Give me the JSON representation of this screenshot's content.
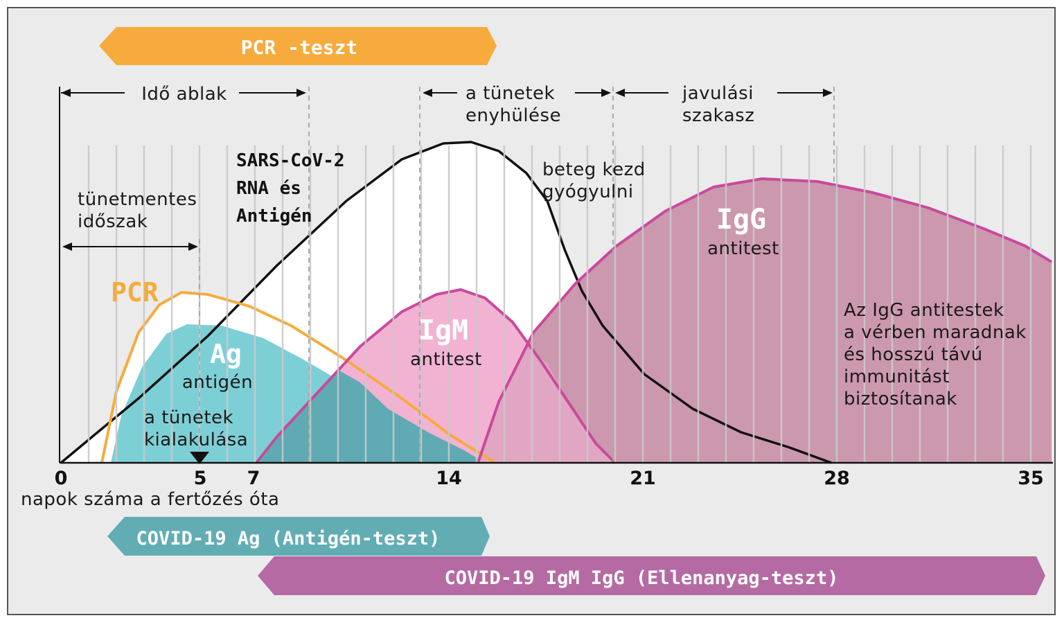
{
  "colors": {
    "background": "#ebebeb",
    "frame": "#555555",
    "pcr": "#f6ab3c",
    "ag": "#7dcfd6",
    "ag_dark": "#5fb0b8",
    "igm_fill": "#f2b2d2",
    "igm_line": "#c9499d",
    "igg_fill": "#cc98ad",
    "igg_line": "#c9499d",
    "rna_line": "#111111",
    "banner_pcr": "#f6ab3c",
    "banner_ag": "#62adb4",
    "banner_ab": "#b56aa3",
    "banner_text": "#ffffff",
    "vertical_lines": "#c9c9c9"
  },
  "banners": {
    "pcr": "PCR -teszt",
    "ag": "COVID-19 Ag (Antigén-teszt)",
    "ab": "COVID-19  IgM  IgG (Ellenanyag-teszt)"
  },
  "phases": {
    "window": "Idő ablak",
    "symptoms_ease_1": "a tünetek",
    "symptoms_ease_2": "enyhülése",
    "recovery_1": "javulási",
    "recovery_2": "szakasz"
  },
  "labels": {
    "asymptomatic_1": "tünetmentes",
    "asymptomatic_2": "időszak",
    "rna_1": "SARS-CoV-2",
    "rna_2": "RNA és",
    "rna_3": "Antigén",
    "patient_1": "beteg kezd",
    "patient_2": "gyógyulni",
    "pcr": "PCR",
    "ag_title": "Ag",
    "ag_sub": "antigén",
    "onset_1": "a tünetek",
    "onset_2": "kialakulása",
    "igm_title": "IgM",
    "igm_sub": "antitest",
    "igg_title": "IgG",
    "igg_sub": "antitest",
    "igg_note_1": "Az IgG antitestek",
    "igg_note_2": "a vérben maradnak",
    "igg_note_3": "és hosszú távú",
    "igg_note_4": "immunitást",
    "igg_note_5": "biztosítanak"
  },
  "axis": {
    "ticks": [
      "0",
      "5",
      "7",
      "14",
      "21",
      "28",
      "35"
    ],
    "xlabel": "napok száma a fertőzés óta"
  }
}
